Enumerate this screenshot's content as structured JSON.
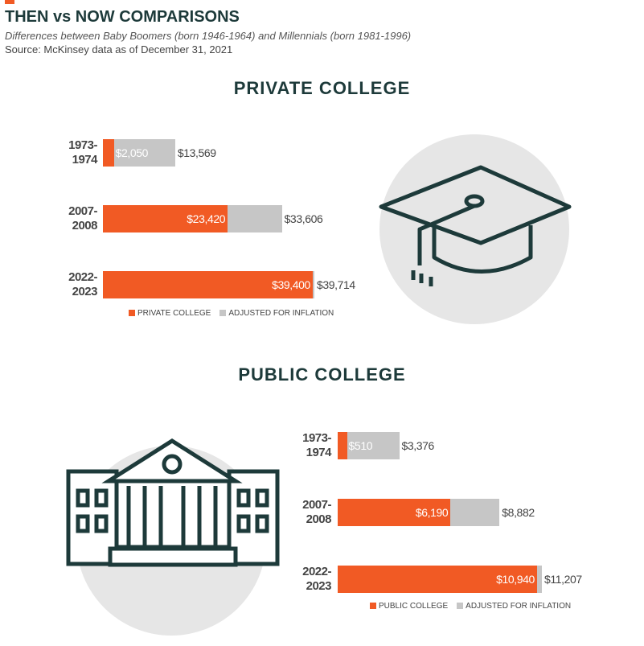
{
  "header": {
    "title": "THEN vs NOW COMPARISONS",
    "subtitle": "Differences between Baby Boomers (born 1946-1964) and Millennials (born 1981-1996)",
    "source": "Source: McKinsey data as of December 31, 2021"
  },
  "chart_data": [
    {
      "type": "bar",
      "title": "PRIVATE COLLEGE",
      "categories": [
        "1973-1974",
        "2007-2008",
        "2022-2023"
      ],
      "series": [
        {
          "name": "PRIVATE COLLEGE",
          "color": "#f15a24",
          "values": [
            2050,
            23420,
            39400
          ],
          "value_labels": [
            "$2,050",
            "$23,420",
            "$39,400"
          ]
        },
        {
          "name": "ADJUSTED FOR INFLATION",
          "color": "#c6c6c6",
          "values": [
            13569,
            33606,
            39714
          ],
          "value_labels": [
            "$13,569",
            "$33,606",
            "$39,714"
          ]
        }
      ]
    },
    {
      "type": "bar",
      "title": "PUBLIC COLLEGE",
      "categories": [
        "1973-1974",
        "2007-2008",
        "2022-2023"
      ],
      "series": [
        {
          "name": "PUBLIC COLLEGE",
          "color": "#f15a24",
          "values": [
            510,
            6190,
            10940
          ],
          "value_labels": [
            "$510",
            "$6,190",
            "$10,940"
          ]
        },
        {
          "name": "ADJUSTED FOR INFLATION",
          "color": "#c6c6c6",
          "values": [
            3376,
            8882,
            11207
          ],
          "value_labels": [
            "$3,376",
            "$8,882",
            "$11,207"
          ]
        }
      ]
    }
  ]
}
